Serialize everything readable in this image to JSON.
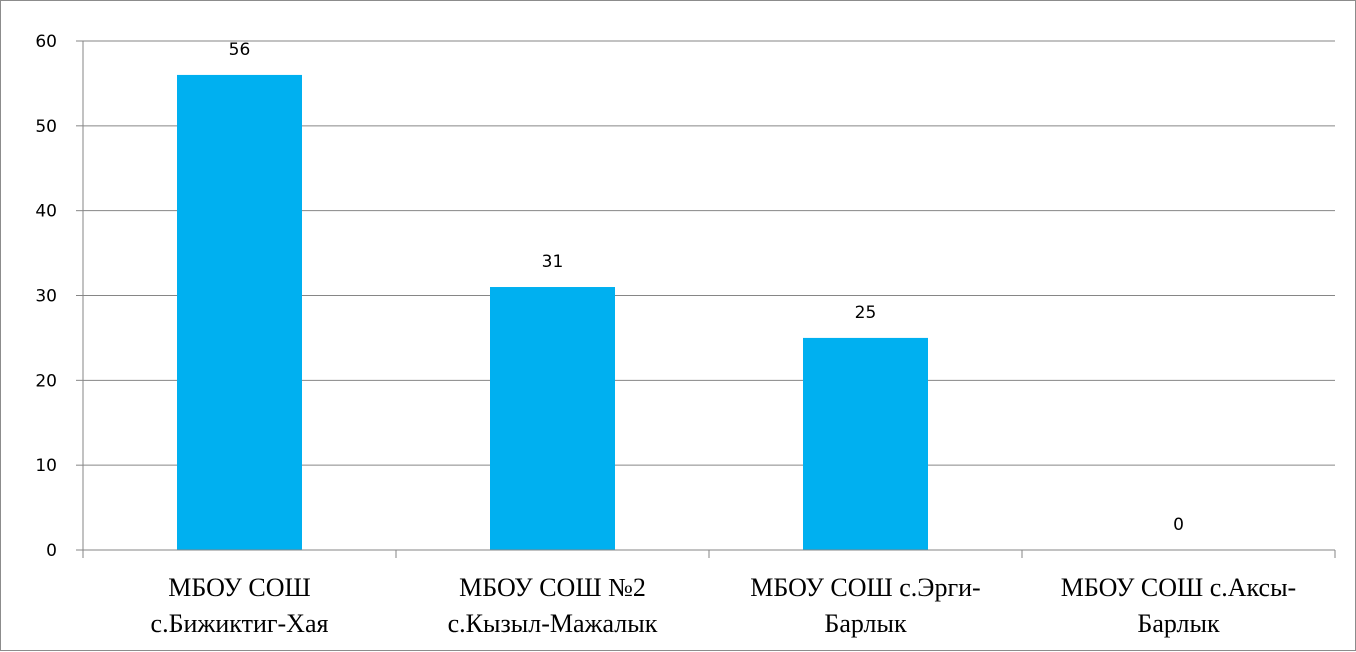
{
  "chart_data": {
    "type": "bar",
    "categories": [
      [
        "МБОУ СОШ",
        "с.Бижиктиг-Хая"
      ],
      [
        "МБОУ СОШ №2",
        "с.Кызыл-Мажалык"
      ],
      [
        "МБОУ СОШ с.Эрги-",
        "Барлык"
      ],
      [
        "МБОУ СОШ с.Аксы-",
        "Барлык"
      ]
    ],
    "values": [
      56,
      31,
      25,
      0
    ],
    "data_labels": [
      "56",
      "31",
      "25",
      "0"
    ],
    "y_ticks": [
      0,
      10,
      20,
      30,
      40,
      50,
      60
    ],
    "ylim": [
      0,
      60
    ],
    "grid": true,
    "legend": "none",
    "bar_color": "#00B0F0",
    "grid_color": "#868686",
    "title": "",
    "xlabel": "",
    "ylabel": ""
  }
}
